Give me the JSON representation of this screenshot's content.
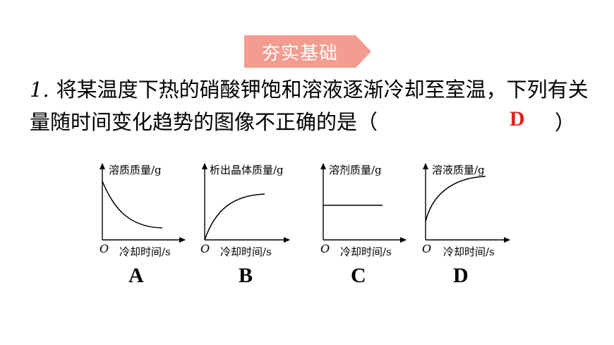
{
  "banner": {
    "text": "夯实基础",
    "color": "#f29d8f"
  },
  "question": {
    "number": "1.",
    "text": "将某温度下热的硝酸钾饱和溶液逐渐冷却至室温，下列有关量随时间变化趋势的图像不正确的是（",
    "paren_close": "）",
    "answer": "D",
    "answer_color": "#e02020"
  },
  "graphs": [
    {
      "id": "A",
      "ylabel": "溶质质量/g",
      "xlabel": "冷却时间/s",
      "origin": "O",
      "curve": "decreasing"
    },
    {
      "id": "B",
      "ylabel": "析出晶体质量/g",
      "xlabel": "冷却时间/s",
      "origin": "O",
      "curve": "increasing-from-zero"
    },
    {
      "id": "C",
      "ylabel": "溶剂质量/g",
      "xlabel": "冷却时间/s",
      "origin": "O",
      "curve": "constant"
    },
    {
      "id": "D",
      "ylabel": "溶液质量/g",
      "xlabel": "冷却时间/s",
      "origin": "O",
      "curve": "increasing"
    }
  ]
}
